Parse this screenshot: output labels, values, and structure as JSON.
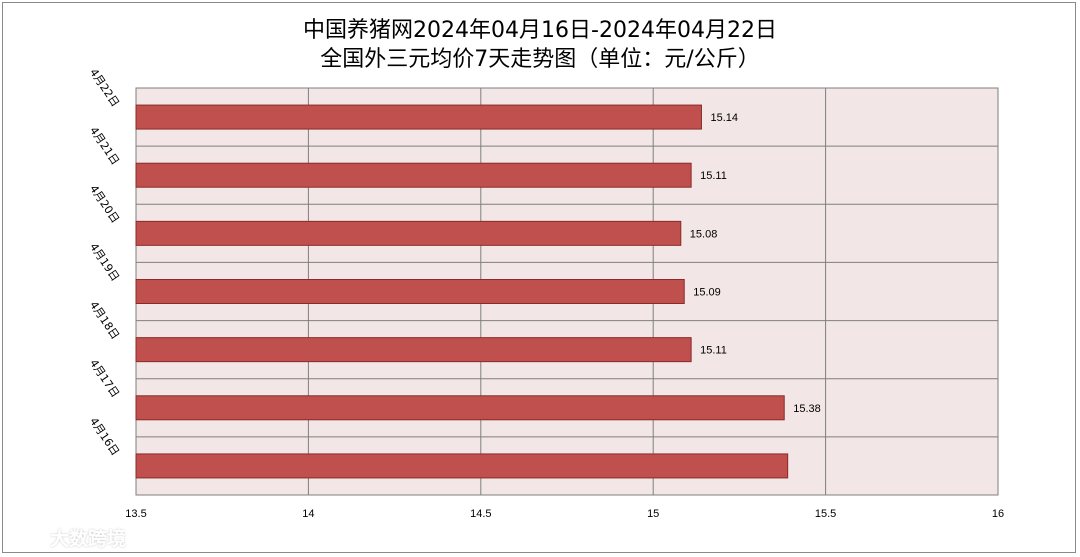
{
  "colors": {
    "bar_fill": "#c0504d",
    "bar_stroke": "#8b2b29",
    "plot_bg": "#f2e6e6",
    "grid": "#7f7f7f"
  },
  "watermark": {
    "text": "大数跨境",
    "icon": "logo-icon"
  },
  "chart_data": {
    "type": "bar",
    "orientation": "horizontal",
    "title": "中国养猪网2024年04月16日-2024年04月22日",
    "subtitle": "全国外三元均价7天走势图（单位：元/公斤）",
    "categories": [
      "4月22日",
      "4月21日",
      "4月20日",
      "4月19日",
      "4月18日",
      "4月17日",
      "4月16日"
    ],
    "values": [
      15.14,
      15.11,
      15.08,
      15.09,
      15.11,
      15.38,
      15.39
    ],
    "data_labels": [
      "15.14",
      "15.11",
      "15.08",
      "15.09",
      "15.11",
      "15.38",
      ""
    ],
    "xlim": [
      13.5,
      16
    ],
    "xticks": [
      13.5,
      14,
      14.5,
      15,
      15.5,
      16
    ],
    "xtick_labels": [
      "13.5",
      "14",
      "14.5",
      "15",
      "15.5",
      "16"
    ],
    "grid": true,
    "legend": "none"
  }
}
